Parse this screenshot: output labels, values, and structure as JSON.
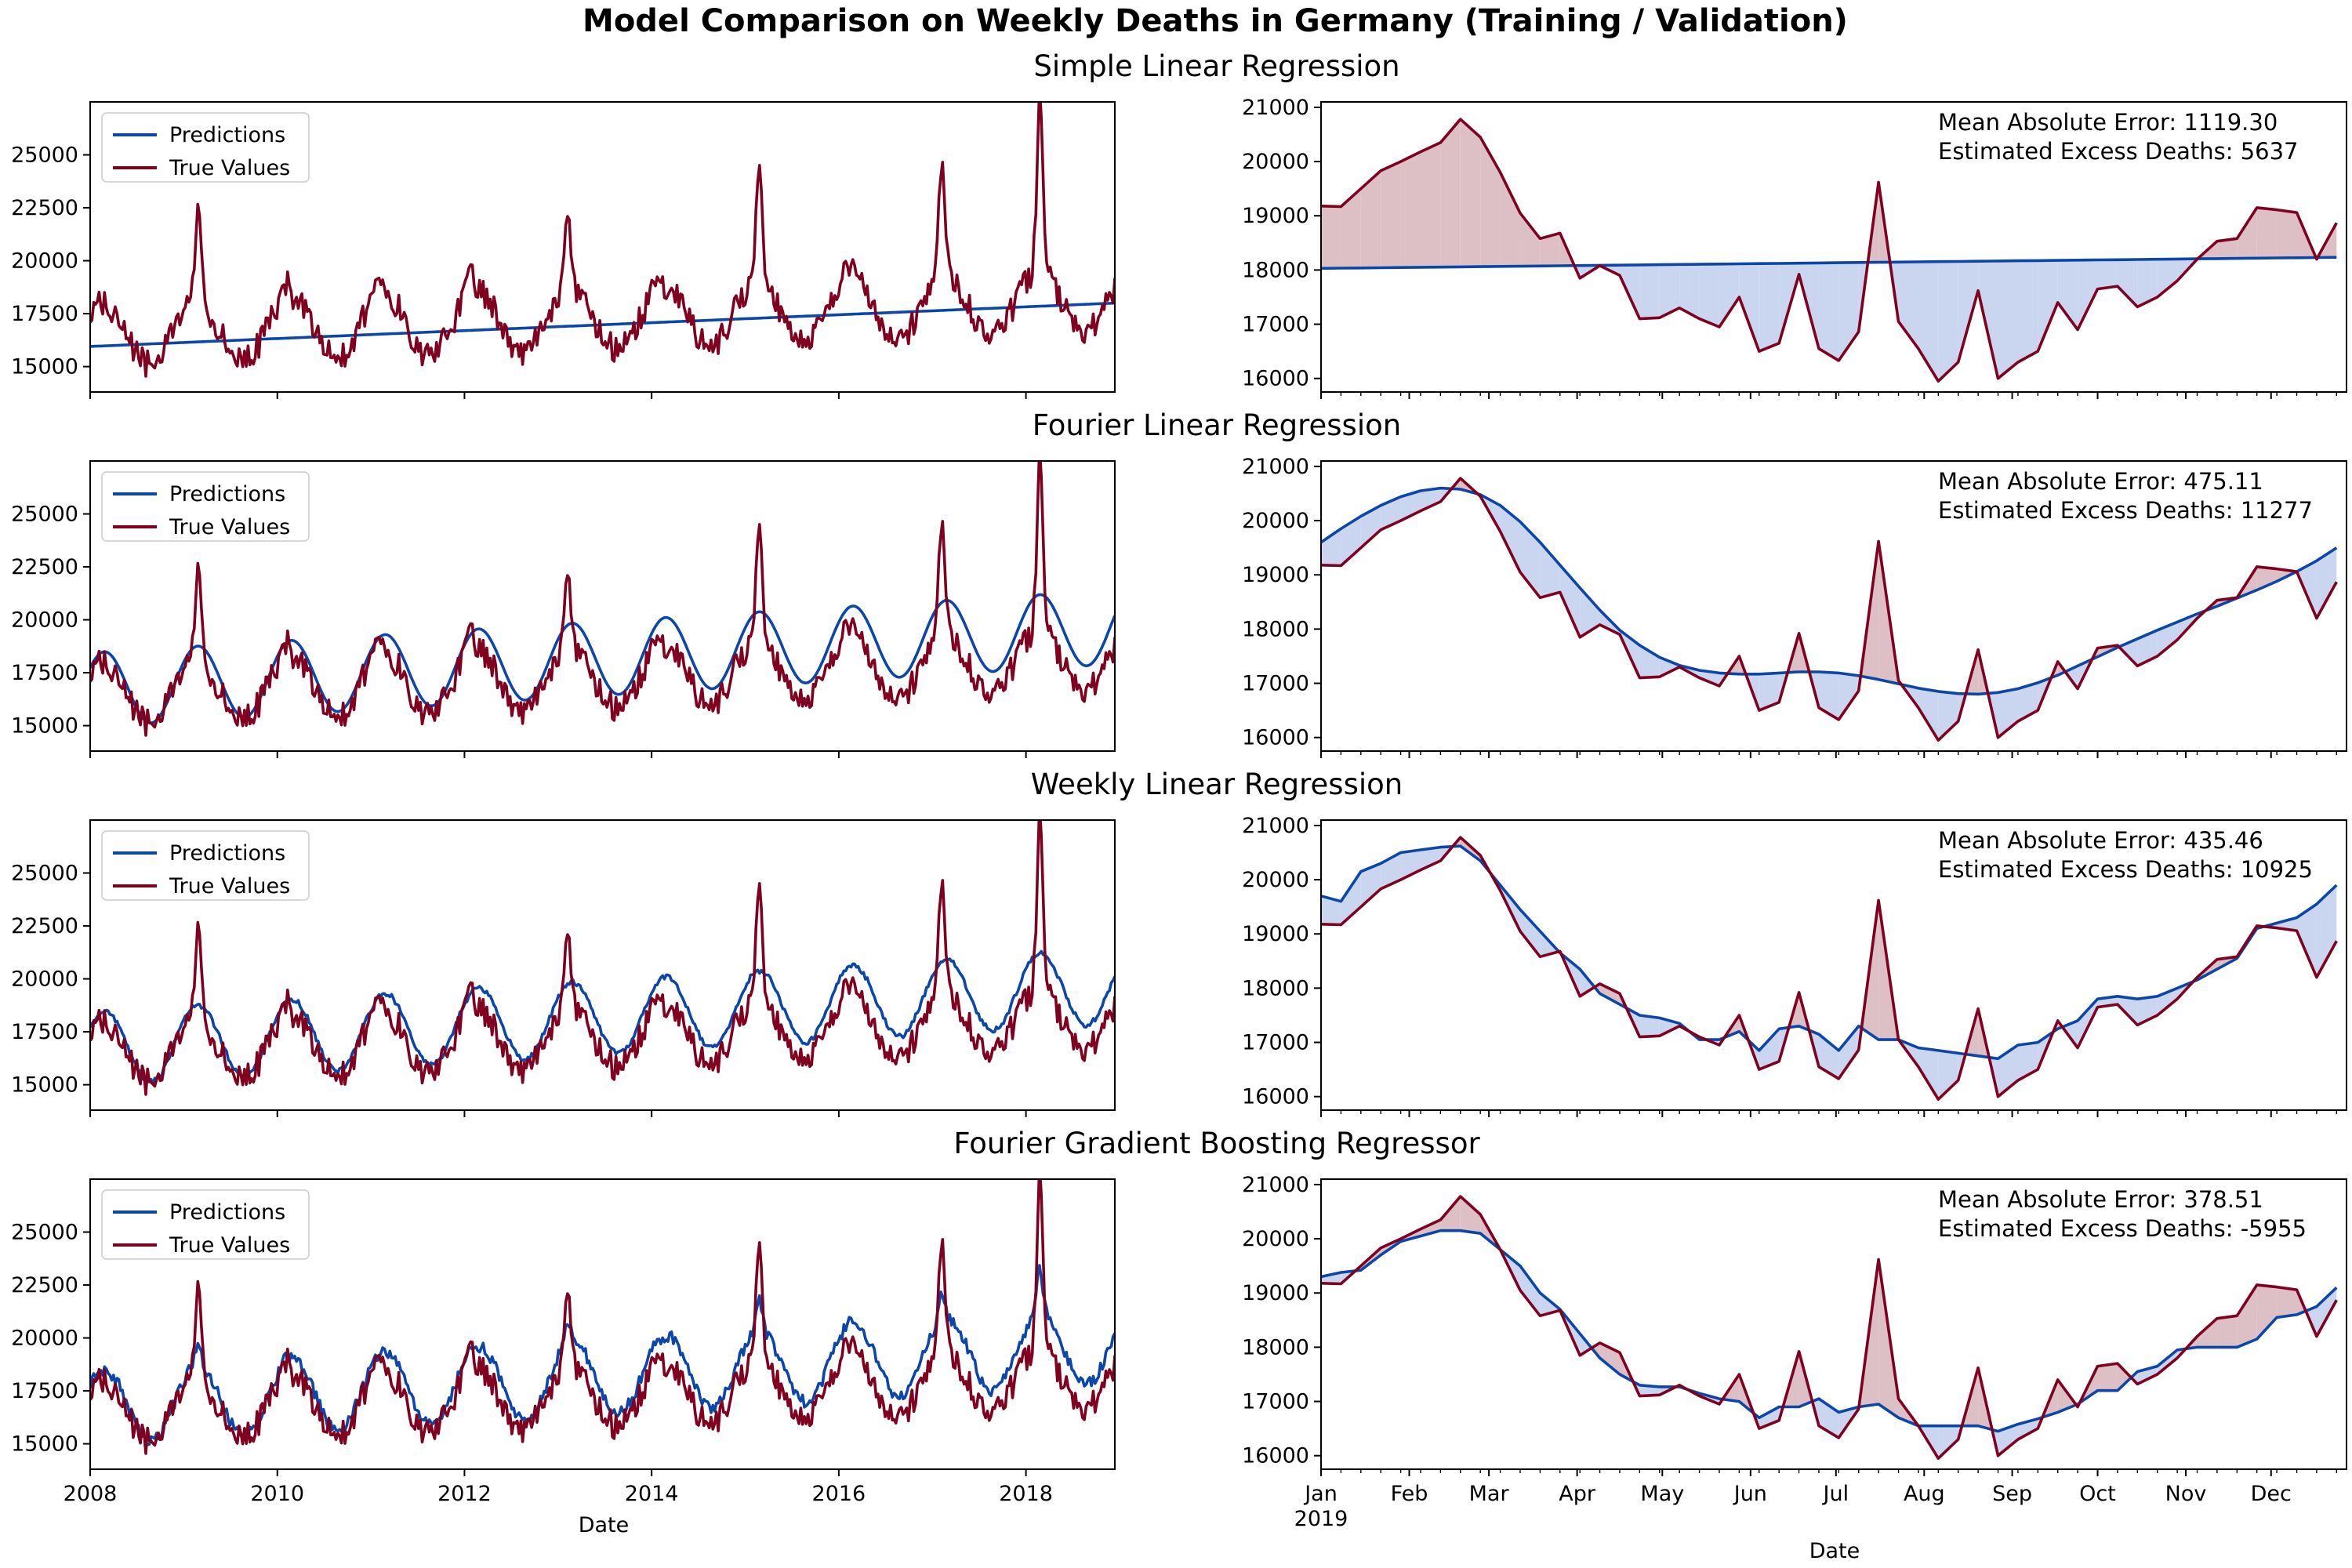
{
  "figure": {
    "title": "Model Comparison on Weekly Deaths in Germany (Training / Validation)",
    "colors": {
      "predictions": "#0b46a8",
      "true_values": "#800020",
      "fill_under": "#dcc0c6",
      "fill_over": "#cad6ef"
    }
  },
  "chart_data": [
    {
      "type": "line",
      "row_title": "Simple Linear Regression",
      "panel": "training",
      "xlim": [
        2008,
        2018.95
      ],
      "ylim": [
        13800,
        27500
      ],
      "x_ticks": [
        2008,
        2010,
        2012,
        2014,
        2016,
        2018
      ],
      "x_tick_labels": [
        "",
        "",
        "",
        "",
        "",
        ""
      ],
      "y_ticks": [
        15000,
        17500,
        20000,
        22500,
        25000
      ],
      "y_tick_labels": [
        "15000",
        "17500",
        "20000",
        "22500",
        "25000"
      ],
      "legend": [
        "Predictions",
        "True Values"
      ],
      "legend_position": "upper-left",
      "xlabel": "",
      "model": "simple",
      "model_trend": [
        15950,
        18000
      ]
    },
    {
      "type": "line",
      "row_title": "",
      "panel": "validation",
      "xlim": [
        0,
        51.5
      ],
      "ylim": [
        15750,
        21100
      ],
      "x_ticks": [
        0,
        4.43,
        8.43,
        12.86,
        17.14,
        21.57,
        25.86,
        30.29,
        34.71,
        39.0,
        43.43,
        47.71
      ],
      "x_tick_labels": [
        "",
        "",
        "",
        "",
        "",
        "",
        "",
        "",
        "",
        "",
        "",
        ""
      ],
      "y_ticks": [
        16000,
        17000,
        18000,
        19000,
        20000,
        21000
      ],
      "y_tick_labels": [
        "16000",
        "17000",
        "18000",
        "19000",
        "20000",
        "21000"
      ],
      "annotations": [
        "Mean Absolute Error: 1119.30",
        "Estimated Excess Deaths: 5637"
      ],
      "xlabel": "",
      "true_values": [
        19180,
        19170,
        19500,
        19830,
        20000,
        20180,
        20350,
        20780,
        20450,
        19800,
        19050,
        18580,
        18680,
        17850,
        18080,
        17900,
        17100,
        17120,
        17300,
        17100,
        16950,
        17500,
        16500,
        16650,
        17920,
        16550,
        16330,
        16860,
        19620,
        17050,
        16550,
        15950,
        16300,
        17620,
        16000,
        16300,
        16500,
        17400,
        16900,
        17650,
        17700,
        17320,
        17500,
        17800,
        18200,
        18530,
        18580,
        19150,
        19110,
        19060,
        18200,
        18870
      ],
      "predictions": [
        18030,
        18034,
        18038,
        18042,
        18046,
        18050,
        18054,
        18058,
        18062,
        18066,
        18070,
        18074,
        18078,
        18082,
        18086,
        18090,
        18094,
        18098,
        18102,
        18106,
        18110,
        18114,
        18118,
        18122,
        18126,
        18130,
        18134,
        18138,
        18142,
        18146,
        18150,
        18154,
        18158,
        18162,
        18166,
        18170,
        18174,
        18178,
        18182,
        18186,
        18190,
        18194,
        18198,
        18202,
        18206,
        18210,
        18214,
        18218,
        18222,
        18226,
        18230,
        18234
      ]
    },
    {
      "type": "line",
      "row_title": "Fourier Linear Regression",
      "panel": "training",
      "xlim": [
        2008,
        2018.95
      ],
      "ylim": [
        13800,
        27500
      ],
      "x_ticks": [
        2008,
        2010,
        2012,
        2014,
        2016,
        2018
      ],
      "x_tick_labels": [
        "",
        "",
        "",
        "",
        "",
        ""
      ],
      "y_ticks": [
        15000,
        17500,
        20000,
        22500,
        25000
      ],
      "y_tick_labels": [
        "15000",
        "17500",
        "20000",
        "22500",
        "25000"
      ],
      "legend": [
        "Predictions",
        "True Values"
      ],
      "legend_position": "upper-left",
      "xlabel": "",
      "model": "fourier"
    },
    {
      "type": "line",
      "row_title": "",
      "panel": "validation",
      "xlim": [
        0,
        51.5
      ],
      "ylim": [
        15750,
        21100
      ],
      "x_ticks": [
        0,
        4.43,
        8.43,
        12.86,
        17.14,
        21.57,
        25.86,
        30.29,
        34.71,
        39.0,
        43.43,
        47.71
      ],
      "x_tick_labels": [
        "",
        "",
        "",
        "",
        "",
        "",
        "",
        "",
        "",
        "",
        "",
        ""
      ],
      "y_ticks": [
        16000,
        17000,
        18000,
        19000,
        20000,
        21000
      ],
      "y_tick_labels": [
        "16000",
        "17000",
        "18000",
        "19000",
        "20000",
        "21000"
      ],
      "annotations": [
        "Mean Absolute Error: 475.11",
        "Estimated Excess Deaths: 11277"
      ],
      "xlabel": "",
      "true_values": [
        19180,
        19170,
        19500,
        19830,
        20000,
        20180,
        20350,
        20780,
        20450,
        19800,
        19050,
        18580,
        18680,
        17850,
        18080,
        17900,
        17100,
        17120,
        17300,
        17100,
        16950,
        17500,
        16500,
        16650,
        17920,
        16550,
        16330,
        16860,
        19620,
        17050,
        16550,
        15950,
        16300,
        17620,
        16000,
        16300,
        16500,
        17400,
        16900,
        17650,
        17700,
        17320,
        17500,
        17800,
        18200,
        18530,
        18580,
        19150,
        19110,
        19060,
        18200,
        18870
      ],
      "predictions": [
        19600,
        19850,
        20080,
        20280,
        20440,
        20550,
        20600,
        20580,
        20480,
        20280,
        19980,
        19600,
        19180,
        18760,
        18350,
        17980,
        17700,
        17480,
        17330,
        17240,
        17190,
        17170,
        17170,
        17190,
        17210,
        17210,
        17190,
        17140,
        17070,
        16990,
        16910,
        16850,
        16810,
        16800,
        16830,
        16900,
        17010,
        17150,
        17320,
        17490,
        17660,
        17820,
        17980,
        18130,
        18280,
        18420,
        18570,
        18720,
        18880,
        19060,
        19260,
        19500
      ]
    },
    {
      "type": "line",
      "row_title": "Weekly Linear Regression",
      "panel": "training",
      "xlim": [
        2008,
        2018.95
      ],
      "ylim": [
        13800,
        27500
      ],
      "x_ticks": [
        2008,
        2010,
        2012,
        2014,
        2016,
        2018
      ],
      "x_tick_labels": [
        "",
        "",
        "",
        "",
        "",
        ""
      ],
      "y_ticks": [
        15000,
        17500,
        20000,
        22500,
        25000
      ],
      "y_tick_labels": [
        "15000",
        "17500",
        "20000",
        "22500",
        "25000"
      ],
      "legend": [
        "Predictions",
        "True Values"
      ],
      "legend_position": "upper-left",
      "xlabel": "",
      "model": "weekly"
    },
    {
      "type": "line",
      "row_title": "",
      "panel": "validation",
      "xlim": [
        0,
        51.5
      ],
      "ylim": [
        15750,
        21100
      ],
      "x_ticks": [
        0,
        4.43,
        8.43,
        12.86,
        17.14,
        21.57,
        25.86,
        30.29,
        34.71,
        39.0,
        43.43,
        47.71
      ],
      "x_tick_labels": [
        "",
        "",
        "",
        "",
        "",
        "",
        "",
        "",
        "",
        "",
        "",
        ""
      ],
      "y_ticks": [
        16000,
        17000,
        18000,
        19000,
        20000,
        21000
      ],
      "y_tick_labels": [
        "16000",
        "17000",
        "18000",
        "19000",
        "20000",
        "21000"
      ],
      "annotations": [
        "Mean Absolute Error: 435.46",
        "Estimated Excess Deaths: 10925"
      ],
      "xlabel": "",
      "true_values": [
        19180,
        19170,
        19500,
        19830,
        20000,
        20180,
        20350,
        20780,
        20450,
        19800,
        19050,
        18580,
        18680,
        17850,
        18080,
        17900,
        17100,
        17120,
        17300,
        17100,
        16950,
        17500,
        16500,
        16650,
        17920,
        16550,
        16330,
        16860,
        19620,
        17050,
        16550,
        15950,
        16300,
        17620,
        16000,
        16300,
        16500,
        17400,
        16900,
        17650,
        17700,
        17320,
        17500,
        17800,
        18200,
        18530,
        18580,
        19150,
        19110,
        19060,
        18200,
        18870
      ],
      "predictions": [
        19700,
        19600,
        20150,
        20300,
        20500,
        20550,
        20600,
        20620,
        20350,
        19900,
        19450,
        19050,
        18650,
        18350,
        17900,
        17700,
        17500,
        17450,
        17350,
        17050,
        17050,
        17200,
        16850,
        17250,
        17300,
        17150,
        16850,
        17300,
        17050,
        17050,
        16900,
        16850,
        16800,
        16750,
        16700,
        16950,
        17000,
        17250,
        17400,
        17800,
        17850,
        17800,
        17850,
        18000,
        18150,
        18350,
        18550,
        19100,
        19200,
        19300,
        19550,
        19900
      ]
    },
    {
      "type": "line",
      "row_title": "Fourier Gradient Boosting Regressor",
      "panel": "training",
      "xlim": [
        2008,
        2018.95
      ],
      "ylim": [
        13800,
        27500
      ],
      "x_ticks": [
        2008,
        2010,
        2012,
        2014,
        2016,
        2018
      ],
      "x_tick_labels": [
        "2008",
        "2010",
        "2012",
        "2014",
        "2016",
        "2018"
      ],
      "y_ticks": [
        15000,
        17500,
        20000,
        22500,
        25000
      ],
      "y_tick_labels": [
        "15000",
        "17500",
        "20000",
        "22500",
        "25000"
      ],
      "legend": [
        "Predictions",
        "True Values"
      ],
      "legend_position": "upper-left",
      "xlabel": "Date",
      "model": "gbr"
    },
    {
      "type": "line",
      "row_title": "",
      "panel": "validation",
      "xlim": [
        0,
        51.5
      ],
      "ylim": [
        15750,
        21100
      ],
      "x_ticks": [
        0,
        4.43,
        8.43,
        12.86,
        17.14,
        21.57,
        25.86,
        30.29,
        34.71,
        39.0,
        43.43,
        47.71
      ],
      "x_tick_labels": [
        "Jan\n2019",
        "Feb",
        "Mar",
        "Apr",
        "May",
        "Jun",
        "Jul",
        "Aug",
        "Sep",
        "Oct",
        "Nov",
        "Dec"
      ],
      "y_ticks": [
        16000,
        17000,
        18000,
        19000,
        20000,
        21000
      ],
      "y_tick_labels": [
        "16000",
        "17000",
        "18000",
        "19000",
        "20000",
        "21000"
      ],
      "annotations": [
        "Mean Absolute Error: 378.51",
        "Estimated Excess Deaths: -5955"
      ],
      "xlabel": "Date",
      "true_values": [
        19180,
        19170,
        19500,
        19830,
        20000,
        20180,
        20350,
        20780,
        20450,
        19800,
        19050,
        18580,
        18680,
        17850,
        18080,
        17900,
        17100,
        17120,
        17300,
        17100,
        16950,
        17500,
        16500,
        16650,
        17920,
        16550,
        16330,
        16860,
        19620,
        17050,
        16550,
        15950,
        16300,
        17620,
        16000,
        16300,
        16500,
        17400,
        16900,
        17650,
        17700,
        17320,
        17500,
        17800,
        18200,
        18530,
        18580,
        19150,
        19110,
        19060,
        18200,
        18870
      ],
      "predictions": [
        19300,
        19380,
        19420,
        19700,
        19950,
        20050,
        20150,
        20150,
        20100,
        19800,
        19500,
        19000,
        18700,
        18250,
        17800,
        17500,
        17300,
        17270,
        17270,
        17150,
        17050,
        17000,
        16700,
        16900,
        16900,
        17050,
        16800,
        16900,
        16950,
        16700,
        16550,
        16550,
        16550,
        16550,
        16450,
        16580,
        16680,
        16800,
        16950,
        17200,
        17200,
        17550,
        17650,
        17950,
        18000,
        18000,
        18000,
        18150,
        18550,
        18600,
        18750,
        19100
      ]
    }
  ]
}
